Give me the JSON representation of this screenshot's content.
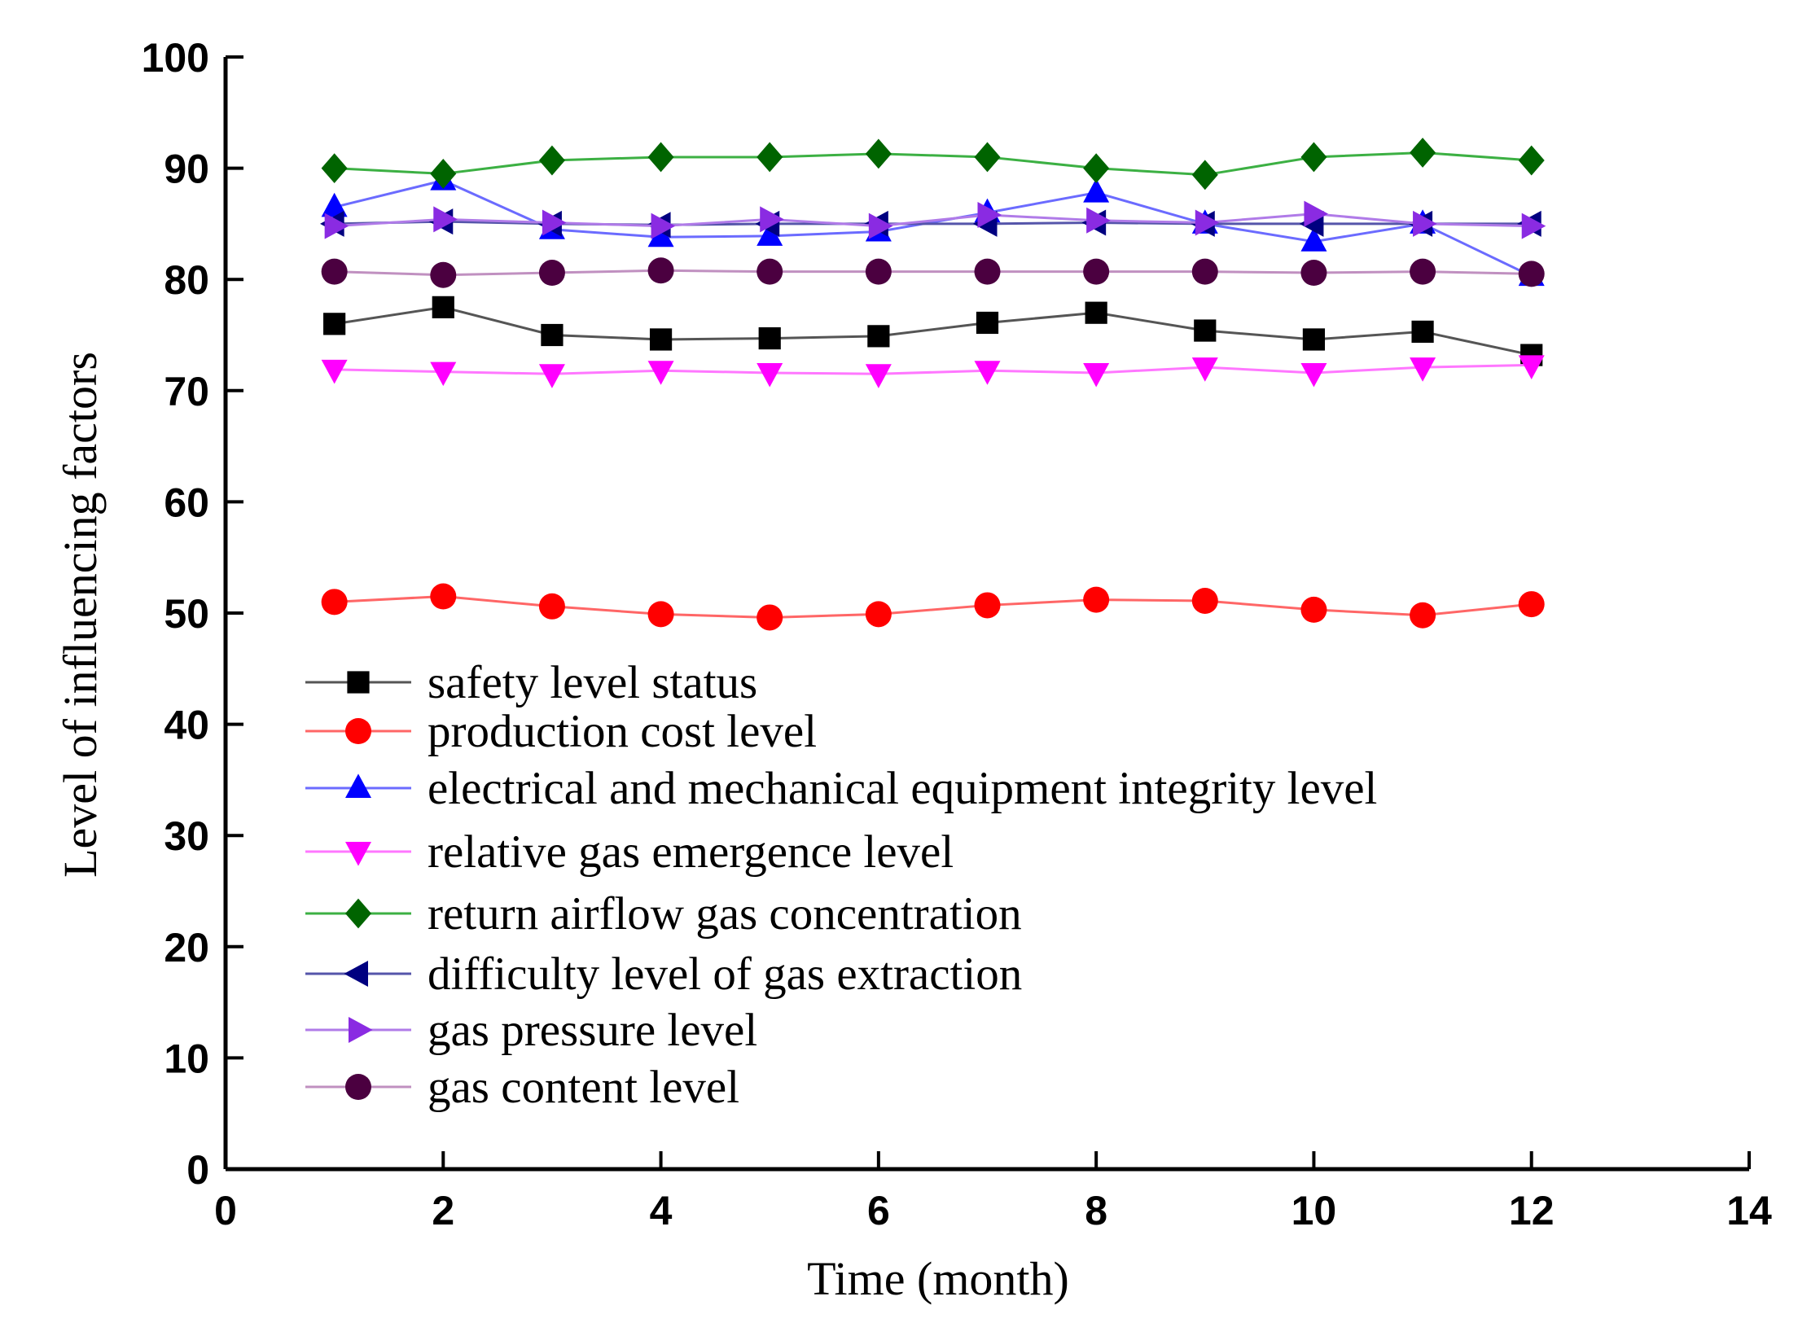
{
  "chart_data": {
    "type": "line",
    "title": "",
    "xlabel": "Time (month)",
    "ylabel": "Level of influencing factors",
    "xlim": [
      0,
      14
    ],
    "ylim": [
      0,
      100
    ],
    "x_ticks": [
      0,
      2,
      4,
      6,
      8,
      10,
      12,
      14
    ],
    "y_ticks": [
      0,
      10,
      20,
      30,
      40,
      50,
      60,
      70,
      80,
      90,
      100
    ],
    "grid": false,
    "legend_position": "lower-left",
    "x": [
      1,
      2,
      3,
      4,
      5,
      6,
      7,
      8,
      9,
      10,
      11,
      12
    ],
    "series": [
      {
        "name": "safety level status",
        "color": "#000000",
        "line_color": "#555555",
        "marker": "square",
        "values": [
          76.0,
          77.5,
          75.0,
          74.6,
          74.7,
          74.9,
          76.1,
          77.0,
          75.4,
          74.6,
          75.3,
          73.2
        ]
      },
      {
        "name": "production cost level",
        "color": "#ff0000",
        "line_color": "#ff6666",
        "marker": "circle",
        "values": [
          51.0,
          51.5,
          50.6,
          49.9,
          49.6,
          49.9,
          50.7,
          51.2,
          51.1,
          50.3,
          49.8,
          50.8
        ]
      },
      {
        "name": "electrical and mechanical equipment integrity level",
        "color": "#0000ff",
        "line_color": "#6b6bff",
        "marker": "triangle-up",
        "values": [
          86.5,
          88.9,
          84.5,
          83.8,
          83.9,
          84.3,
          86.0,
          87.8,
          85.0,
          83.4,
          85.0,
          80.3
        ]
      },
      {
        "name": "relative gas emergence level",
        "color": "#ff00ff",
        "line_color": "#ff77ff",
        "marker": "triangle-down",
        "values": [
          71.9,
          71.7,
          71.5,
          71.8,
          71.6,
          71.5,
          71.8,
          71.6,
          72.1,
          71.6,
          72.1,
          72.3
        ]
      },
      {
        "name": "return airflow gas concentration",
        "color": "#006400",
        "line_color": "#3cb043",
        "marker": "diamond",
        "values": [
          90.0,
          89.5,
          90.7,
          91.0,
          91.0,
          91.3,
          91.0,
          90.0,
          89.4,
          91.0,
          91.4,
          90.7
        ]
      },
      {
        "name": "difficulty level of gas extraction",
        "color": "#000080",
        "line_color": "#5555aa",
        "marker": "triangle-left",
        "values": [
          85.0,
          85.2,
          85.0,
          84.9,
          85.0,
          85.0,
          85.0,
          85.1,
          85.0,
          85.0,
          85.0,
          85.0
        ]
      },
      {
        "name": "gas pressure level",
        "color": "#8a2be2",
        "line_color": "#b07be8",
        "marker": "triangle-right",
        "values": [
          84.8,
          85.4,
          85.1,
          84.8,
          85.4,
          84.8,
          85.8,
          85.3,
          85.1,
          85.9,
          85.0,
          84.8
        ]
      },
      {
        "name": "gas content level",
        "color": "#4b0040",
        "line_color": "#c090c0",
        "marker": "circle",
        "values": [
          80.7,
          80.4,
          80.6,
          80.8,
          80.7,
          80.7,
          80.7,
          80.7,
          80.7,
          80.6,
          80.7,
          80.5
        ]
      }
    ]
  }
}
